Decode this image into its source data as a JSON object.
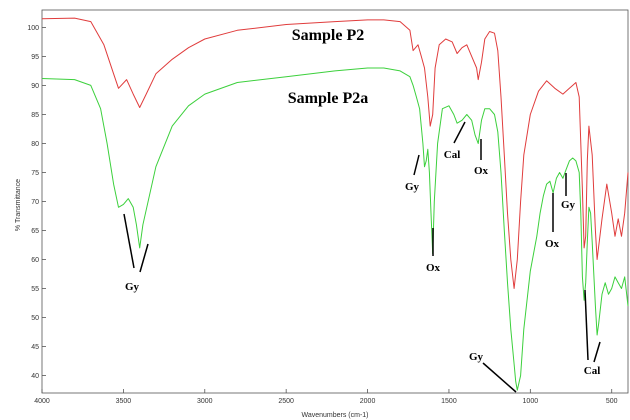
{
  "chart_data": {
    "type": "line",
    "xlabel": "Wavenumbers (cm-1)",
    "ylabel": "% Transmittance",
    "xlim": [
      4000,
      400
    ],
    "ylim": [
      37,
      103
    ],
    "x_reversed": true,
    "grid": false,
    "x_ticks": [
      4000,
      3500,
      3000,
      2500,
      2000,
      1500,
      1000,
      500
    ],
    "y_ticks": [
      40,
      45,
      50,
      55,
      60,
      65,
      70,
      75,
      80,
      85,
      90,
      95,
      100
    ],
    "series": [
      {
        "name": "Sample P2",
        "color": "#e03c3c",
        "x": [
          4000,
          3800,
          3700,
          3620,
          3560,
          3530,
          3480,
          3440,
          3400,
          3360,
          3300,
          3200,
          3100,
          3000,
          2800,
          2500,
          2200,
          2000,
          1900,
          1800,
          1740,
          1720,
          1690,
          1670,
          1650,
          1630,
          1615,
          1600,
          1585,
          1560,
          1520,
          1480,
          1450,
          1420,
          1390,
          1360,
          1330,
          1320,
          1300,
          1280,
          1250,
          1220,
          1200,
          1180,
          1160,
          1140,
          1120,
          1100,
          1080,
          1060,
          1040,
          1000,
          950,
          900,
          850,
          800,
          760,
          740,
          720,
          700,
          680,
          670,
          660,
          650,
          640,
          620,
          600,
          590,
          560,
          530,
          500,
          480,
          460,
          440,
          420,
          400
        ],
        "y": [
          101.5,
          101.6,
          101.0,
          97.0,
          92.0,
          89.5,
          91.0,
          88.5,
          86.2,
          88.5,
          92.0,
          94.5,
          96.5,
          98.0,
          99.5,
          100.5,
          101.0,
          101.3,
          101.3,
          101.0,
          99.5,
          96.0,
          97.0,
          95.0,
          93.0,
          88.0,
          83.0,
          85.0,
          93.0,
          97.0,
          98.0,
          97.5,
          95.5,
          96.5,
          97.0,
          95.0,
          93.0,
          91.0,
          94.0,
          98.0,
          99.3,
          99.0,
          96.0,
          88.0,
          78.0,
          68.0,
          60.0,
          55.0,
          60.0,
          70.0,
          78.0,
          85.0,
          89.0,
          90.8,
          89.5,
          88.5,
          89.5,
          90.0,
          90.5,
          88.0,
          72.0,
          62.0,
          64.0,
          77.0,
          83.0,
          78.0,
          65.0,
          60.0,
          67.0,
          73.0,
          68.0,
          64.0,
          67.0,
          64.0,
          68.0,
          75.0
        ]
      },
      {
        "name": "Sample P2a",
        "color": "#3cd03c",
        "x": [
          4000,
          3800,
          3700,
          3640,
          3600,
          3560,
          3530,
          3500,
          3470,
          3440,
          3420,
          3400,
          3380,
          3340,
          3300,
          3200,
          3100,
          3000,
          2800,
          2500,
          2200,
          2000,
          1900,
          1800,
          1740,
          1720,
          1700,
          1680,
          1660,
          1650,
          1640,
          1630,
          1620,
          1610,
          1600,
          1590,
          1570,
          1540,
          1500,
          1470,
          1450,
          1420,
          1390,
          1360,
          1340,
          1320,
          1300,
          1280,
          1250,
          1220,
          1200,
          1180,
          1160,
          1140,
          1120,
          1100,
          1090,
          1080,
          1060,
          1040,
          1000,
          960,
          940,
          920,
          900,
          880,
          860,
          840,
          820,
          800,
          780,
          760,
          740,
          720,
          700,
          690,
          680,
          670,
          660,
          650,
          640,
          630,
          620,
          600,
          590,
          580,
          560,
          540,
          520,
          500,
          480,
          460,
          440,
          420,
          400
        ],
        "y": [
          91.2,
          91.0,
          90.0,
          86.0,
          80.0,
          73.0,
          69.0,
          69.5,
          70.5,
          69.0,
          66.0,
          62.0,
          66.0,
          71.0,
          76.0,
          83.0,
          86.5,
          88.5,
          90.5,
          91.5,
          92.5,
          93.0,
          93.0,
          92.5,
          91.5,
          90.0,
          88.0,
          86.0,
          80.0,
          76.0,
          77.0,
          79.0,
          75.0,
          68.0,
          61.0,
          70.0,
          80.0,
          86.0,
          86.5,
          85.0,
          83.5,
          84.0,
          85.0,
          84.0,
          81.5,
          80.0,
          84.0,
          86.0,
          86.0,
          85.0,
          82.0,
          75.0,
          65.0,
          56.0,
          48.0,
          42.0,
          39.0,
          37.5,
          40.0,
          48.0,
          58.0,
          64.0,
          68.0,
          71.0,
          73.0,
          73.5,
          71.5,
          74.0,
          75.0,
          74.0,
          75.5,
          77.0,
          77.5,
          77.0,
          75.0,
          68.0,
          57.0,
          53.0,
          56.0,
          63.0,
          69.0,
          68.0,
          63.0,
          52.0,
          47.0,
          49.0,
          54.0,
          56.0,
          54.0,
          55.0,
          57.0,
          56.0,
          55.0,
          57.0,
          52.0
        ]
      }
    ],
    "annotations": {
      "sample_labels": [
        "Sample P2",
        "Sample P2a"
      ],
      "peak_labels": [
        "Gy",
        "Ox",
        "Cal",
        "Ox",
        "Gy",
        "Gy",
        "Cal",
        "Ox",
        "Gy"
      ]
    }
  }
}
